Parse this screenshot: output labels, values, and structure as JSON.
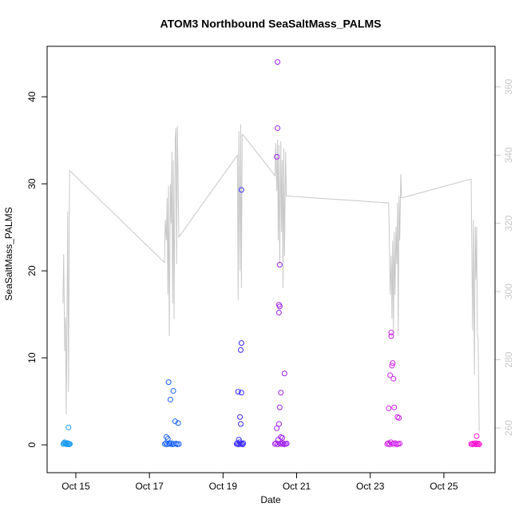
{
  "chart_data": {
    "type": "scatter",
    "title": "ATOM3 Northbound SeaSaltMass_PALMS",
    "x_label": "Date",
    "y_label": "SeaSaltMass_PALMS",
    "xlim": [
      14.22,
      26.39
    ],
    "xticks": [
      {
        "value": 15,
        "label": "Oct 15"
      },
      {
        "value": 17,
        "label": "Oct 17"
      },
      {
        "value": 19,
        "label": "Oct 19"
      },
      {
        "value": 21,
        "label": "Oct 21"
      },
      {
        "value": 23,
        "label": "Oct 23"
      },
      {
        "value": 25,
        "label": "Oct 25"
      }
    ],
    "ylim": [
      -3.2,
      45.8
    ],
    "yticks": [
      0,
      10,
      20,
      30,
      40
    ],
    "y2lim": [
      246.9,
      371.9
    ],
    "y2ticks": [
      260,
      280,
      300,
      320,
      340,
      360
    ],
    "y2_color": "#c8c8c8",
    "series": [
      {
        "mode": "line",
        "axis": "y2",
        "color": "#c8c8c8",
        "x": [
          14.65,
          14.67,
          14.7,
          14.72,
          14.74,
          14.76,
          14.78,
          14.8,
          14.83,
          17.41,
          17.43,
          17.46,
          17.48,
          17.5,
          17.52,
          17.54,
          17.57,
          17.59,
          17.61,
          17.63,
          17.65,
          17.67,
          17.7,
          17.72,
          17.74,
          17.76,
          17.8,
          19.39,
          19.41,
          19.43,
          19.46,
          19.48,
          19.5,
          19.52,
          19.54,
          20.41,
          20.43,
          20.46,
          20.48,
          20.5,
          20.52,
          20.54,
          20.57,
          20.59,
          20.61,
          20.63,
          20.65,
          20.67,
          20.7,
          20.72,
          20.74,
          23.5,
          23.52,
          23.54,
          23.57,
          23.59,
          23.61,
          23.63,
          23.65,
          23.67,
          23.7,
          23.72,
          23.74,
          23.76,
          23.78,
          23.8,
          23.83,
          23.85,
          23.87,
          25.74,
          25.76,
          25.78,
          25.8,
          25.83,
          25.85,
          25.87,
          25.89,
          25.91,
          25.93,
          25.96
        ],
        "values": [
          296.5,
          311,
          282.5,
          292.5,
          264,
          292,
          323.5,
          270.5,
          335.5,
          308.5,
          321,
          315,
          327.5,
          299,
          331,
          287,
          331.5,
          320,
          341,
          296.5,
          338.5,
          292,
          344.5,
          348,
          308,
          348.5,
          316,
          340,
          297.5,
          347,
          306,
          349,
          301,
          346,
          346,
          334,
          343.5,
          329.5,
          344.5,
          315,
          343,
          308,
          344,
          317.5,
          338.5,
          301,
          342,
          310.5,
          341,
          328,
          328,
          326,
          315,
          299,
          310.5,
          292,
          315,
          288.5,
          317.5,
          299,
          319,
          308,
          326,
          287,
          328,
          315,
          334.5,
          327.5,
          327.5,
          333,
          310.5,
          288.5,
          321,
          275.5,
          319,
          303.5,
          319,
          287,
          286,
          259
        ]
      },
      {
        "mode": "points",
        "color": "#1e9cf0",
        "x": [
          14.66,
          14.68,
          14.7,
          14.72,
          14.74,
          14.76,
          14.78,
          14.8,
          14.82,
          14.84,
          14.8
        ],
        "values": [
          0.1,
          0.2,
          0.3,
          0.1,
          0.15,
          0.05,
          0.2,
          0.1,
          0.05,
          0.1,
          2.0
        ]
      },
      {
        "mode": "points",
        "color": "#1a62ff",
        "x": [
          17.52,
          17.65,
          17.57,
          17.7,
          17.78,
          17.46,
          17.5,
          17.42,
          17.45,
          17.48,
          17.53,
          17.56,
          17.6,
          17.63,
          17.67,
          17.72,
          17.76,
          17.8
        ],
        "values": [
          7.2,
          6.2,
          5.2,
          2.7,
          2.5,
          0.9,
          0.7,
          0.1,
          0.2,
          0.05,
          0.15,
          0.1,
          0.2,
          0.05,
          0.1,
          0.15,
          0.05,
          0.1
        ]
      },
      {
        "mode": "points",
        "color": "#3a28ff",
        "x": [
          19.5,
          19.5,
          19.48,
          19.41,
          19.5,
          19.46,
          19.48,
          19.43,
          19.37,
          19.39,
          19.42,
          19.45,
          19.47,
          19.51,
          19.53,
          19.55
        ],
        "values": [
          29.3,
          11.7,
          10.9,
          6.1,
          6.0,
          3.2,
          2.4,
          0.6,
          0.1,
          0.2,
          0.05,
          0.3,
          0.1,
          0.15,
          0.05,
          0.2
        ]
      },
      {
        "mode": "points",
        "color": "#a020f0",
        "x": [
          20.48,
          20.48,
          20.46,
          20.54,
          20.52,
          20.54,
          20.52,
          20.67,
          20.57,
          20.54,
          20.52,
          20.46,
          20.57,
          20.61,
          20.5,
          20.41,
          20.44,
          20.49,
          20.55,
          20.59,
          20.63,
          20.66,
          20.7,
          20.73
        ],
        "values": [
          44.0,
          36.4,
          33.1,
          20.7,
          16.1,
          15.9,
          15.2,
          8.2,
          6.0,
          4.3,
          2.4,
          1.9,
          0.9,
          0.8,
          0.6,
          0.1,
          0.2,
          0.05,
          0.15,
          0.1,
          0.2,
          0.05,
          0.1,
          0.15
        ]
      },
      {
        "mode": "points",
        "color": "#d020ee",
        "x": [
          23.57,
          23.57,
          23.61,
          23.59,
          23.54,
          23.63,
          23.65,
          23.5,
          23.74,
          23.78,
          23.46,
          23.49,
          23.52,
          23.56,
          23.6,
          23.64,
          23.68,
          23.72,
          23.76,
          23.8
        ],
        "values": [
          12.9,
          12.5,
          9.4,
          9.1,
          8.0,
          7.6,
          4.3,
          4.2,
          3.2,
          3.1,
          0.1,
          0.2,
          0.05,
          0.3,
          0.1,
          0.15,
          0.2,
          0.05,
          0.1,
          0.15
        ]
      },
      {
        "mode": "points",
        "color": "#ff14d2",
        "x": [
          25.89,
          25.74,
          25.77,
          25.8,
          25.83,
          25.86,
          25.88,
          25.91,
          25.94,
          25.96
        ],
        "values": [
          1.0,
          0.1,
          0.05,
          0.15,
          0.1,
          0.2,
          0.05,
          0.1,
          0.15,
          0.05
        ]
      }
    ]
  }
}
